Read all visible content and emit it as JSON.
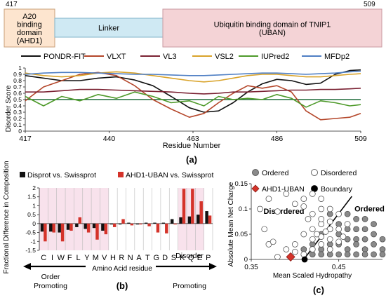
{
  "panel_a": {
    "domain_bar": {
      "start_label": "417",
      "end_label": "509",
      "segments": [
        {
          "label": "A20 binding domain (AHD1)",
          "lines": [
            "A20",
            "binding",
            "domain",
            "(AHD1)"
          ],
          "color": "#fde5cf",
          "border": "#c9a07a"
        },
        {
          "label": "Linker",
          "lines": [
            "Linker"
          ],
          "color": "#cfe9f3",
          "border": "#7fb3c8"
        },
        {
          "label": "Ubiquitin binding domain of TNIP1 (UBAN)",
          "lines": [
            "Ubiquitin binding domain of TNIP1",
            "(UBAN)"
          ],
          "color": "#f4d3d6",
          "border": "#c99aa0"
        }
      ]
    },
    "chart_data": {
      "type": "line",
      "ylabel": "Disorder Score",
      "xlabel": "Residue Number",
      "ylim": [
        0,
        1
      ],
      "yticks": [
        0,
        0.1,
        0.2,
        0.3,
        0.4,
        0.5,
        0.6,
        0.7,
        0.8,
        0.9,
        1
      ],
      "xlim": [
        417,
        509
      ],
      "xticks": [
        417,
        440,
        463,
        486,
        509
      ],
      "threshold": 0.5,
      "series": [
        {
          "name": "PONDR-FIT",
          "color": "#111111",
          "x": [
            417,
            422,
            427,
            432,
            437,
            442,
            447,
            452,
            457,
            462,
            466,
            470,
            474,
            478,
            482,
            486,
            490,
            494,
            498,
            502,
            506,
            509
          ],
          "y": [
            0.88,
            0.84,
            0.8,
            0.8,
            0.84,
            0.86,
            0.81,
            0.72,
            0.55,
            0.37,
            0.3,
            0.32,
            0.45,
            0.62,
            0.75,
            0.82,
            0.8,
            0.74,
            0.76,
            0.9,
            0.96,
            0.97
          ]
        },
        {
          "name": "VLXT",
          "color": "#b4462a",
          "x": [
            417,
            422,
            427,
            432,
            437,
            442,
            447,
            452,
            457,
            462,
            466,
            470,
            474,
            478,
            482,
            486,
            490,
            494,
            498,
            502,
            506,
            509
          ],
          "y": [
            0.48,
            0.7,
            0.8,
            0.9,
            0.93,
            0.88,
            0.72,
            0.5,
            0.35,
            0.22,
            0.28,
            0.45,
            0.6,
            0.72,
            0.68,
            0.72,
            0.62,
            0.32,
            0.18,
            0.2,
            0.22,
            0.28
          ]
        },
        {
          "name": "VL3",
          "color": "#7b2233",
          "x": [
            417,
            422,
            427,
            432,
            437,
            442,
            447,
            452,
            457,
            462,
            466,
            470,
            474,
            478,
            482,
            486,
            490,
            494,
            498,
            502,
            506,
            509
          ],
          "y": [
            0.62,
            0.62,
            0.64,
            0.66,
            0.66,
            0.65,
            0.64,
            0.63,
            0.62,
            0.6,
            0.59,
            0.6,
            0.62,
            0.62,
            0.63,
            0.64,
            0.65,
            0.65,
            0.66,
            0.66,
            0.67,
            0.68
          ]
        },
        {
          "name": "VSL2",
          "color": "#d9a32a",
          "x": [
            417,
            422,
            427,
            432,
            437,
            442,
            447,
            452,
            457,
            462,
            466,
            470,
            474,
            478,
            482,
            486,
            490,
            494,
            498,
            502,
            506,
            509
          ],
          "y": [
            0.92,
            0.88,
            0.86,
            0.88,
            0.92,
            0.94,
            0.92,
            0.88,
            0.84,
            0.8,
            0.78,
            0.8,
            0.84,
            0.88,
            0.9,
            0.9,
            0.88,
            0.86,
            0.86,
            0.88,
            0.9,
            0.91
          ]
        },
        {
          "name": "IUPred2",
          "color": "#4e9a2a",
          "x": [
            417,
            422,
            427,
            432,
            437,
            442,
            447,
            452,
            457,
            462,
            466,
            470,
            474,
            478,
            482,
            486,
            490,
            494,
            498,
            502,
            506,
            509
          ],
          "y": [
            0.55,
            0.4,
            0.55,
            0.48,
            0.58,
            0.52,
            0.62,
            0.55,
            0.45,
            0.48,
            0.4,
            0.55,
            0.5,
            0.52,
            0.5,
            0.58,
            0.52,
            0.38,
            0.48,
            0.45,
            0.4,
            0.42
          ]
        },
        {
          "name": "MFDp2",
          "color": "#4f7fc4",
          "x": [
            417,
            422,
            427,
            432,
            437,
            442,
            447,
            452,
            457,
            462,
            466,
            470,
            474,
            478,
            482,
            486,
            490,
            494,
            498,
            502,
            506,
            509
          ],
          "y": [
            0.9,
            0.92,
            0.93,
            0.93,
            0.92,
            0.91,
            0.9,
            0.9,
            0.89,
            0.88,
            0.88,
            0.89,
            0.9,
            0.91,
            0.92,
            0.92,
            0.91,
            0.9,
            0.91,
            0.92,
            0.94,
            0.95
          ]
        }
      ]
    },
    "panel_label": "(a)"
  },
  "panel_b": {
    "chart_data": {
      "type": "bar",
      "ylabel": "Fractional Difference in Composition",
      "xlabel": "Amino Acid residue",
      "ylim": [
        -1.5,
        2
      ],
      "yticks": [
        -1.5,
        -1,
        -0.5,
        0,
        0.5,
        1,
        1.5,
        2
      ],
      "ytick_labels": [
        "-1.5",
        "-1",
        "-0.5",
        "0",
        "0.5",
        "1",
        "1.5",
        "2"
      ],
      "categories": [
        "C",
        "I",
        "W",
        "F",
        "L",
        "Y",
        "M",
        "V",
        "H",
        "R",
        "N",
        "A",
        "T",
        "G",
        "D",
        "S",
        "K",
        "Q",
        "E",
        "P"
      ],
      "series": [
        {
          "name": "Disprot vs. Swissprot",
          "color": "#111111",
          "values": [
            -0.45,
            -0.45,
            -0.5,
            -0.35,
            -0.2,
            -0.3,
            -0.25,
            -0.4,
            -0.05,
            -0.05,
            0.05,
            -0.05,
            0.05,
            0.05,
            0.05,
            0.25,
            0.35,
            0.4,
            0.5,
            0.7
          ]
        },
        {
          "name": "AHD1-UBAN vs. Swissprot",
          "color": "#d4332a",
          "values": [
            -1.0,
            -0.5,
            -1.0,
            -0.4,
            0.35,
            -0.5,
            -0.9,
            -0.6,
            -0.2,
            0.25,
            -0.1,
            -0.05,
            -0.15,
            -0.5,
            -0.55,
            -0.05,
            1.95,
            1.95,
            1.25,
            0.45
          ]
        }
      ],
      "highlight_bands": [
        {
          "from": "C",
          "to": "V"
        },
        {
          "from": "K",
          "to": "E"
        }
      ]
    },
    "left_note": {
      "lines": [
        "Order",
        "Promoting"
      ]
    },
    "right_note": {
      "lines": [
        "Disorder",
        "Promoting"
      ]
    },
    "panel_label": "(b)"
  },
  "panel_c": {
    "chart_data": {
      "type": "scatter",
      "ylabel": "Absolute Mean Net Charge",
      "xlabel": "Mean Scaled Hydropathy",
      "xlim": [
        0.35,
        0.5
      ],
      "xticks": [
        0.35,
        0.45
      ],
      "xtick_labels": [
        "0.35",
        "0.45"
      ],
      "ylim": [
        0,
        0.15
      ],
      "yticks": [
        0,
        0.05,
        0.1,
        0.15
      ],
      "ytick_labels": [
        "0",
        "0.05",
        "0.1",
        "0.15"
      ],
      "boundary": {
        "x": [
          0.41,
          0.465
        ],
        "y": [
          0.0,
          0.125
        ]
      },
      "region_labels": [
        {
          "text": "Disordered",
          "x": 0.364,
          "y": 0.09
        },
        {
          "text": "Ordered",
          "x": 0.468,
          "y": 0.095
        }
      ],
      "series": [
        {
          "name": "Ordered",
          "marker": "circle",
          "fill": "#8a8a8a",
          "stroke": "#444",
          "points": [
            [
              0.43,
              0.02
            ],
            [
              0.44,
              0.03
            ],
            [
              0.45,
              0.05
            ],
            [
              0.46,
              0.02
            ],
            [
              0.47,
              0.04
            ],
            [
              0.48,
              0.06
            ],
            [
              0.49,
              0.03
            ],
            [
              0.5,
              0.02
            ],
            [
              0.45,
              0.01
            ],
            [
              0.46,
              0.06
            ],
            [
              0.47,
              0.08
            ],
            [
              0.48,
              0.02
            ],
            [
              0.44,
              0.01
            ],
            [
              0.49,
              0.05
            ],
            [
              0.47,
              0.01
            ],
            [
              0.46,
              0.04
            ],
            [
              0.48,
              0.04
            ],
            [
              0.5,
              0.04
            ],
            [
              0.43,
              0.05
            ],
            [
              0.44,
              0.06
            ],
            [
              0.42,
              0.03
            ],
            [
              0.45,
              0.03
            ],
            [
              0.46,
              0.01
            ],
            [
              0.47,
              0.06
            ],
            [
              0.48,
              0.01
            ],
            [
              0.49,
              0.01
            ],
            [
              0.47,
              0.03
            ],
            [
              0.45,
              0.07
            ],
            [
              0.44,
              0.09
            ],
            [
              0.46,
              0.09
            ],
            [
              0.48,
              0.08
            ],
            [
              0.43,
              0.01
            ],
            [
              0.42,
              0.01
            ],
            [
              0.5,
              0.01
            ],
            [
              0.49,
              0.07
            ],
            [
              0.41,
              0.02
            ]
          ]
        },
        {
          "name": "Disordered",
          "marker": "circle",
          "fill": "#ffffff",
          "stroke": "#444",
          "points": [
            [
              0.36,
              0.1
            ],
            [
              0.37,
              0.12
            ],
            [
              0.38,
              0.095
            ],
            [
              0.39,
              0.13
            ],
            [
              0.4,
              0.11
            ],
            [
              0.41,
              0.12
            ],
            [
              0.42,
              0.13
            ],
            [
              0.43,
              0.1
            ],
            [
              0.415,
              0.08
            ],
            [
              0.42,
              0.06
            ],
            [
              0.43,
              0.07
            ],
            [
              0.44,
              0.06
            ],
            [
              0.45,
              0.09
            ],
            [
              0.44,
              0.1
            ],
            [
              0.43,
              0.12
            ],
            [
              0.41,
              0.05
            ],
            [
              0.42,
              0.04
            ],
            [
              0.43,
              0.045
            ],
            [
              0.44,
              0.04
            ],
            [
              0.45,
              0.06
            ],
            [
              0.4,
              0.03
            ],
            [
              0.41,
              0.01
            ],
            [
              0.42,
              0.02
            ],
            [
              0.43,
              0.03
            ],
            [
              0.44,
              0.02
            ],
            [
              0.38,
              0.005
            ],
            [
              0.39,
              0.02
            ],
            [
              0.4,
              0.015
            ],
            [
              0.46,
              0.07
            ],
            [
              0.43,
              0.08
            ],
            [
              0.42,
              0.09
            ],
            [
              0.41,
              0.105
            ],
            [
              0.44,
              0.075
            ],
            [
              0.45,
              0.035
            ],
            [
              0.365,
              0.06
            ],
            [
              0.37,
              0.03
            ],
            [
              0.375,
              0.035
            ],
            [
              0.435,
              0.055
            ],
            [
              0.425,
              0.05
            ],
            [
              0.455,
              0.045
            ]
          ]
        },
        {
          "name": "AHD1-UBAN",
          "marker": "diamond",
          "fill": "#d4332a",
          "stroke": "#8a1d18",
          "points": [
            [
              0.395,
              0.005
            ]
          ]
        },
        {
          "name": "Boundary",
          "marker": "circle",
          "fill": "#000000",
          "stroke": "#000000",
          "points": [
            [
              0.411,
              0.0
            ]
          ]
        }
      ]
    },
    "panel_label": "(c)"
  }
}
